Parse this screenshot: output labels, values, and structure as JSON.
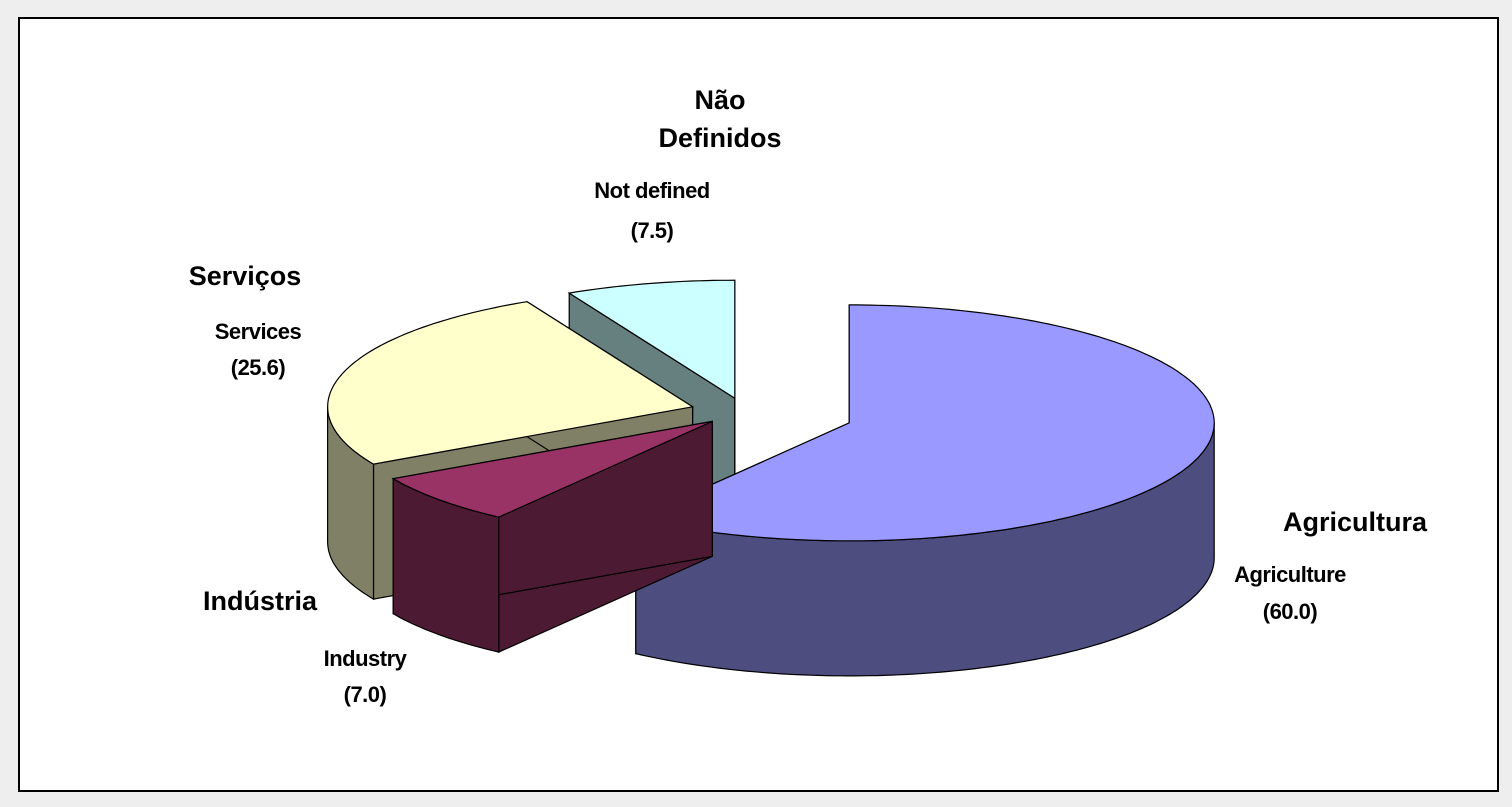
{
  "chart_data": {
    "type": "pie",
    "categories": [
      "Agricultura",
      "Indústria",
      "Serviços",
      "Não Definidos"
    ],
    "categories_en": [
      "Agriculture",
      "Industry",
      "Services",
      "Not defined"
    ],
    "values": [
      60.0,
      7.0,
      25.6,
      7.5
    ],
    "value_labels": [
      "(60.0)",
      "(7.0)",
      "(25.6)",
      "(7.5)"
    ],
    "colors": [
      "#9999ff",
      "#993366",
      "#ffffcc",
      "#ccffff"
    ]
  }
}
